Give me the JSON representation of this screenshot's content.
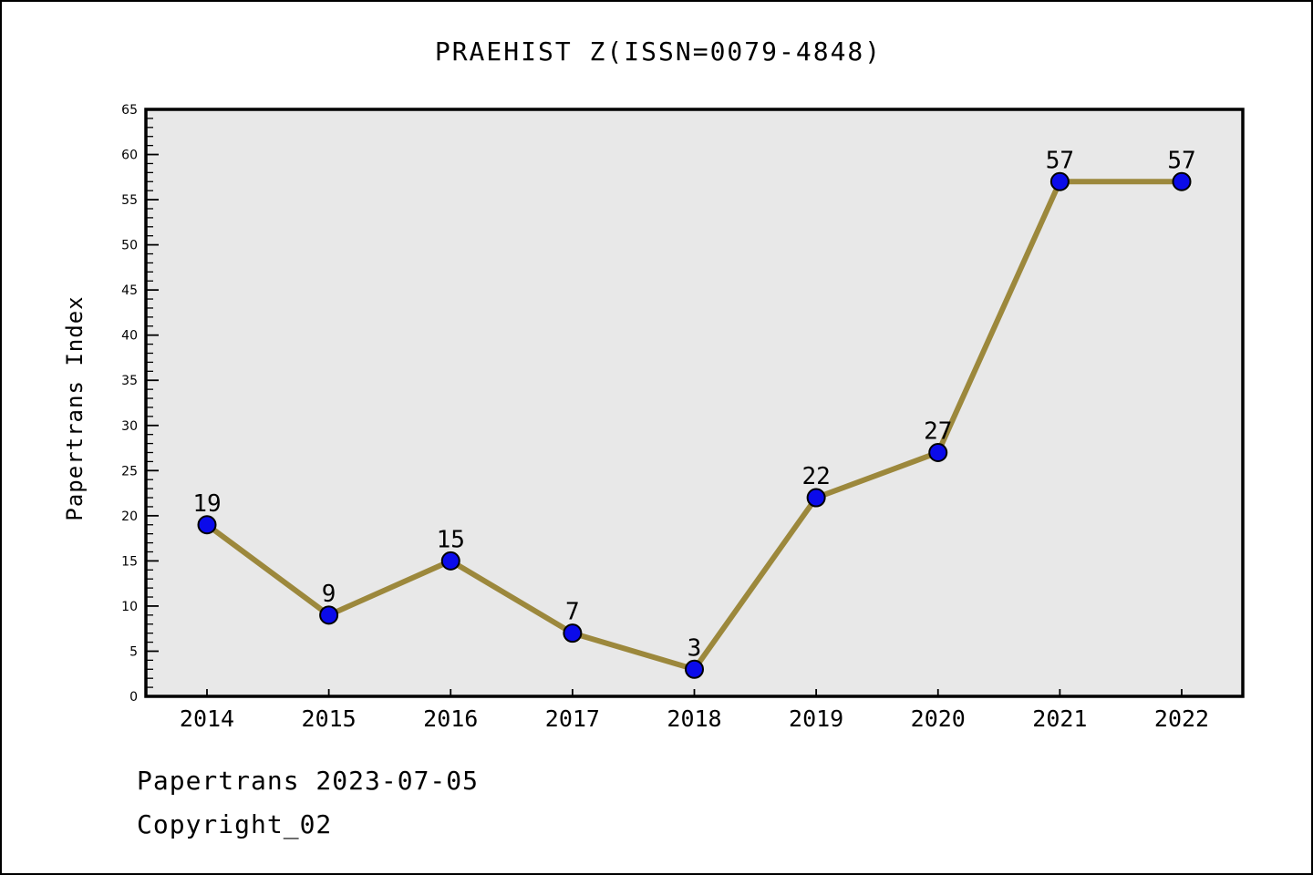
{
  "page": {
    "footer_line1": "Papertrans 2023-07-05",
    "footer_line2": "Copyright_02"
  },
  "chart_data": {
    "type": "line",
    "title": "PRAEHIST Z(ISSN=0079-4848)",
    "categories": [
      "2014",
      "2015",
      "2016",
      "2017",
      "2018",
      "2019",
      "2020",
      "2021",
      "2022"
    ],
    "values": [
      19,
      9,
      15,
      7,
      3,
      22,
      27,
      57,
      57
    ],
    "data_point_labels": [
      "19",
      "9",
      "15",
      "7",
      "3",
      "22",
      "27",
      "57",
      "57"
    ],
    "xlabel": "",
    "ylabel": "Papertrans Index",
    "ylim": [
      0,
      65
    ],
    "y_major_tick_step": 5,
    "y_minor_tick_step": 1,
    "y_major_tick_labels": [
      "0",
      "5",
      "10",
      "15",
      "20",
      "25",
      "30",
      "35",
      "40",
      "45",
      "50",
      "55",
      "60",
      "65"
    ],
    "grid": false,
    "legend": "none",
    "colors": {
      "line": "#9c883c",
      "marker_fill": "#0b0bea",
      "marker_edge": "#000000",
      "plot_background": "#e8e8e8",
      "axis": "#000000",
      "text": "#000000",
      "page_background": "#ffffff"
    }
  }
}
